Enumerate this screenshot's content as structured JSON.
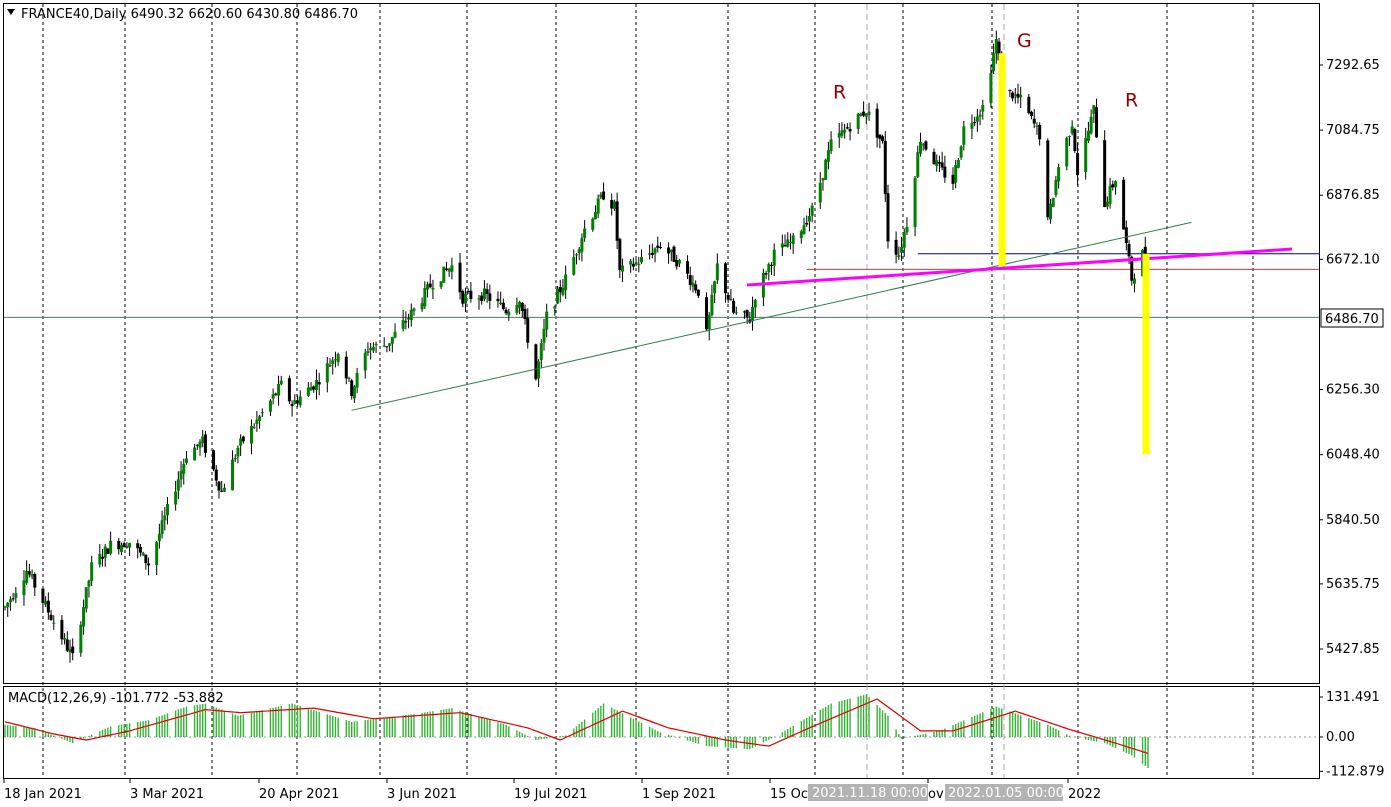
{
  "header": {
    "symbol_line": "FRANCE40,Daily  6490.32 6620.60 6430.80 6486.70",
    "dropdown_icon": "triangle-down-icon"
  },
  "macd_header": {
    "label": "MACD(12,26,9) -101.772 -53.882"
  },
  "price_label": {
    "value": "6486.70"
  },
  "crosshair_labels": [
    "2021.11.18 00:00",
    "2022.01.05 00:00"
  ],
  "annotations": [
    {
      "text": "R",
      "date": "2021-11-04",
      "price": 7185
    },
    {
      "text": "G",
      "date": "2022-01-07",
      "price": 7350
    },
    {
      "text": "R",
      "date": "2022-02-11",
      "price": 7160
    }
  ],
  "colors": {
    "bull_candle": "#008000",
    "bear_candle": "#000000",
    "neckline": "#ff00ff",
    "highlight": "#ffff00",
    "trendline": "#2e7d4f",
    "macd_hist": "#33b533",
    "macd_signal": "#dd0000",
    "h_line_support": "#000080",
    "h_line_red": "#dd3333"
  },
  "chart_data": {
    "type": "candlestick",
    "symbol": "FRANCE40",
    "timeframe": "Daily",
    "last_bar": {
      "open": 6490.32,
      "high": 6620.6,
      "low": 6430.8,
      "close": 6486.7
    },
    "y_ticks": [
      "7292.65",
      "7084.75",
      "6876.85",
      "6672.10",
      "6486.70",
      "6256.30",
      "6048.40",
      "5840.50",
      "5635.75",
      "5427.85"
    ],
    "ylim": [
      5330,
      7420
    ],
    "x_ticks": [
      "18 Jan 2021",
      "3 Mar 2021",
      "20 Apr 2021",
      "3 Jun 2021",
      "19 Jul 2021",
      "1 Sep 2021",
      "15 Oc",
      "ov",
      "2022"
    ],
    "xlim": [
      "2021-01-04",
      "2022-03-22"
    ],
    "price_anchors": [
      [
        "2021-01-04",
        5560
      ],
      [
        "2021-01-12",
        5680
      ],
      [
        "2021-01-29",
        5400
      ],
      [
        "2021-02-05",
        5690
      ],
      [
        "2021-02-12",
        5760
      ],
      [
        "2021-02-19",
        5770
      ],
      [
        "2021-02-26",
        5700
      ],
      [
        "2021-03-03",
        5820
      ],
      [
        "2021-03-12",
        6050
      ],
      [
        "2021-03-18",
        6090
      ],
      [
        "2021-03-25",
        5930
      ],
      [
        "2021-03-31",
        6070
      ],
      [
        "2021-04-09",
        6180
      ],
      [
        "2021-04-16",
        6270
      ],
      [
        "2021-04-20",
        6210
      ],
      [
        "2021-04-29",
        6280
      ],
      [
        "2021-05-07",
        6380
      ],
      [
        "2021-05-12",
        6250
      ],
      [
        "2021-05-18",
        6390
      ],
      [
        "2021-05-25",
        6400
      ],
      [
        "2021-06-04",
        6510
      ],
      [
        "2021-06-11",
        6600
      ],
      [
        "2021-06-18",
        6650
      ],
      [
        "2021-06-22",
        6550
      ],
      [
        "2021-06-30",
        6560
      ],
      [
        "2021-07-08",
        6510
      ],
      [
        "2021-07-13",
        6550
      ],
      [
        "2021-07-19",
        6290
      ],
      [
        "2021-07-23",
        6490
      ],
      [
        "2021-07-30",
        6610
      ],
      [
        "2021-08-06",
        6770
      ],
      [
        "2021-08-13",
        6880
      ],
      [
        "2021-08-17",
        6840
      ],
      [
        "2021-08-19",
        6630
      ],
      [
        "2021-08-27",
        6670
      ],
      [
        "2021-09-03",
        6720
      ],
      [
        "2021-09-10",
        6660
      ],
      [
        "2021-09-17",
        6570
      ],
      [
        "2021-09-20",
        6430
      ],
      [
        "2021-09-24",
        6650
      ],
      [
        "2021-09-30",
        6500
      ],
      [
        "2021-10-06",
        6480
      ],
      [
        "2021-10-08",
        6560
      ],
      [
        "2021-10-15",
        6690
      ],
      [
        "2021-10-22",
        6730
      ],
      [
        "2021-10-29",
        6830
      ],
      [
        "2021-11-05",
        7040
      ],
      [
        "2021-11-12",
        7100
      ],
      [
        "2021-11-18",
        7150
      ],
      [
        "2021-11-24",
        7040
      ],
      [
        "2021-11-26",
        6740
      ],
      [
        "2021-11-30",
        6690
      ],
      [
        "2021-12-03",
        6790
      ],
      [
        "2021-12-08",
        7060
      ],
      [
        "2021-12-15",
        6960
      ],
      [
        "2021-12-20",
        6920
      ],
      [
        "2021-12-24",
        7090
      ],
      [
        "2021-12-31",
        7160
      ],
      [
        "2022-01-05",
        7370
      ],
      [
        "2022-01-07",
        7220
      ],
      [
        "2022-01-14",
        7180
      ],
      [
        "2022-01-21",
        7070
      ],
      [
        "2022-01-24",
        6790
      ],
      [
        "2022-01-28",
        6970
      ],
      [
        "2022-02-02",
        7110
      ],
      [
        "2022-02-04",
        6950
      ],
      [
        "2022-02-10",
        7150
      ],
      [
        "2022-02-14",
        6850
      ],
      [
        "2022-02-18",
        6930
      ],
      [
        "2022-02-24",
        6610
      ],
      [
        "2022-02-28",
        6690
      ],
      [
        "2022-03-02",
        6486.7
      ]
    ],
    "lines": [
      {
        "name": "trendline",
        "from": [
          "2021-05-12",
          6190
        ],
        "to": [
          "2022-03-18",
          6790
        ]
      },
      {
        "name": "neckline",
        "from": [
          "2021-10-13",
          6590
        ],
        "to": [
          "2022-03-14",
          6705
        ]
      },
      {
        "name": "support",
        "from": [
          "2021-12-07",
          6690
        ],
        "to": [
          "2022-03-22",
          6690
        ]
      },
      {
        "name": "red-level",
        "from": [
          "2021-10-27",
          6640
        ],
        "to": [
          "2022-03-22",
          6640
        ]
      },
      {
        "name": "current-price",
        "from": [
          "2021-01-04",
          6486.7
        ],
        "to": [
          "2022-03-22",
          6486.7
        ]
      }
    ],
    "highlight_bars": [
      {
        "name": "head-height",
        "date": "2022-01-06",
        "from": 7330,
        "to": 6650
      },
      {
        "name": "target-projection",
        "date": "2022-03-02",
        "from": 6690,
        "to": 6050
      }
    ],
    "macd": {
      "fast": 12,
      "slow": 26,
      "signal": 9,
      "main": -101.772,
      "signal_value": -53.882,
      "y_ticks": [
        "131.491",
        "0.00",
        "-112.879"
      ],
      "ylim": [
        -140,
        150
      ],
      "main_anchors": [
        [
          "2021-01-04",
          40
        ],
        [
          "2021-01-15",
          30
        ],
        [
          "2021-01-29",
          -20
        ],
        [
          "2021-02-12",
          35
        ],
        [
          "2021-02-26",
          55
        ],
        [
          "2021-03-12",
          100
        ],
        [
          "2021-03-19",
          110
        ],
        [
          "2021-03-31",
          70
        ],
        [
          "2021-04-20",
          110
        ],
        [
          "2021-05-12",
          50
        ],
        [
          "2021-06-04",
          75
        ],
        [
          "2021-06-18",
          95
        ],
        [
          "2021-07-08",
          40
        ],
        [
          "2021-07-19",
          -10
        ],
        [
          "2021-07-30",
          5
        ],
        [
          "2021-08-13",
          110
        ],
        [
          "2021-08-24",
          60
        ],
        [
          "2021-09-03",
          15
        ],
        [
          "2021-09-20",
          -30
        ],
        [
          "2021-10-06",
          -40
        ],
        [
          "2021-10-15",
          0
        ],
        [
          "2021-11-05",
          110
        ],
        [
          "2021-11-18",
          140
        ],
        [
          "2021-11-26",
          70
        ],
        [
          "2021-12-01",
          -5
        ],
        [
          "2021-12-15",
          20
        ],
        [
          "2022-01-05",
          100
        ],
        [
          "2022-01-24",
          40
        ],
        [
          "2022-02-02",
          0
        ],
        [
          "2022-02-14",
          -20
        ],
        [
          "2022-02-24",
          -60
        ],
        [
          "2022-03-02",
          -101.772
        ]
      ],
      "signal_anchors": [
        [
          "2021-01-04",
          50
        ],
        [
          "2021-01-22",
          10
        ],
        [
          "2021-02-03",
          -10
        ],
        [
          "2021-02-19",
          20
        ],
        [
          "2021-03-05",
          55
        ],
        [
          "2021-03-19",
          90
        ],
        [
          "2021-04-01",
          80
        ],
        [
          "2021-04-28",
          95
        ],
        [
          "2021-05-20",
          60
        ],
        [
          "2021-06-21",
          80
        ],
        [
          "2021-07-16",
          30
        ],
        [
          "2021-07-28",
          -10
        ],
        [
          "2021-08-20",
          85
        ],
        [
          "2021-09-06",
          30
        ],
        [
          "2021-09-27",
          -10
        ],
        [
          "2021-10-13",
          -30
        ],
        [
          "2021-10-28",
          30
        ],
        [
          "2021-11-22",
          125
        ],
        [
          "2021-12-08",
          20
        ],
        [
          "2021-12-20",
          20
        ],
        [
          "2022-01-12",
          85
        ],
        [
          "2022-02-01",
          25
        ],
        [
          "2022-02-18",
          -20
        ],
        [
          "2022-03-02",
          -53.882
        ]
      ]
    }
  }
}
